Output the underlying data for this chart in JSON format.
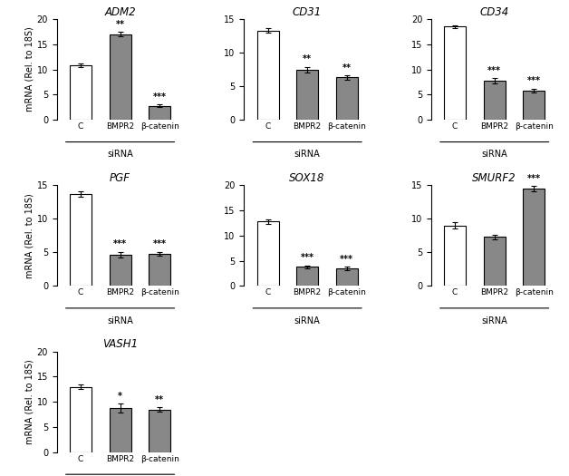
{
  "panels": [
    {
      "title": "ADM2",
      "ylim": [
        0,
        20
      ],
      "yticks": [
        0,
        5,
        10,
        15,
        20
      ],
      "bars": [
        {
          "label": "C",
          "value": 10.8,
          "err": 0.3,
          "color": "white"
        },
        {
          "label": "BMPR2",
          "value": 17.0,
          "err": 0.4,
          "color": "gray",
          "sig": "**"
        },
        {
          "label": "β-catenin",
          "value": 2.8,
          "err": 0.2,
          "color": "gray",
          "sig": "***"
        }
      ]
    },
    {
      "title": "CD31",
      "ylim": [
        0,
        15
      ],
      "yticks": [
        0,
        5,
        10,
        15
      ],
      "bars": [
        {
          "label": "C",
          "value": 13.3,
          "err": 0.3,
          "color": "white"
        },
        {
          "label": "BMPR2",
          "value": 7.5,
          "err": 0.4,
          "color": "gray",
          "sig": "**"
        },
        {
          "label": "β-catenin",
          "value": 6.3,
          "err": 0.3,
          "color": "gray",
          "sig": "**"
        }
      ]
    },
    {
      "title": "CD34",
      "ylim": [
        0,
        20
      ],
      "yticks": [
        0,
        5,
        10,
        15,
        20
      ],
      "bars": [
        {
          "label": "C",
          "value": 18.5,
          "err": 0.3,
          "color": "white"
        },
        {
          "label": "BMPR2",
          "value": 7.8,
          "err": 0.5,
          "color": "gray",
          "sig": "***"
        },
        {
          "label": "β-catenin",
          "value": 5.8,
          "err": 0.4,
          "color": "gray",
          "sig": "***"
        }
      ]
    },
    {
      "title": "PGF",
      "ylim": [
        0,
        15
      ],
      "yticks": [
        0,
        5,
        10,
        15
      ],
      "bars": [
        {
          "label": "C",
          "value": 13.7,
          "err": 0.4,
          "color": "white"
        },
        {
          "label": "BMPR2",
          "value": 4.7,
          "err": 0.4,
          "color": "gray",
          "sig": "***"
        },
        {
          "label": "β-catenin",
          "value": 4.8,
          "err": 0.3,
          "color": "gray",
          "sig": "***"
        }
      ]
    },
    {
      "title": "SOX18",
      "ylim": [
        0,
        20
      ],
      "yticks": [
        0,
        5,
        10,
        15,
        20
      ],
      "bars": [
        {
          "label": "C",
          "value": 12.8,
          "err": 0.4,
          "color": "white"
        },
        {
          "label": "BMPR2",
          "value": 3.8,
          "err": 0.3,
          "color": "gray",
          "sig": "***"
        },
        {
          "label": "β-catenin",
          "value": 3.5,
          "err": 0.3,
          "color": "gray",
          "sig": "***"
        }
      ]
    },
    {
      "title": "SMURF2",
      "ylim": [
        0,
        15
      ],
      "yticks": [
        0,
        5,
        10,
        15
      ],
      "bars": [
        {
          "label": "C",
          "value": 9.0,
          "err": 0.5,
          "color": "white"
        },
        {
          "label": "BMPR2",
          "value": 7.3,
          "err": 0.3,
          "color": "gray"
        },
        {
          "label": "β-catenin",
          "value": 14.5,
          "err": 0.4,
          "color": "gray",
          "sig": "***"
        }
      ]
    },
    {
      "title": "VASH1",
      "ylim": [
        0,
        20
      ],
      "yticks": [
        0,
        5,
        10,
        15,
        20
      ],
      "bars": [
        {
          "label": "C",
          "value": 13.0,
          "err": 0.5,
          "color": "white"
        },
        {
          "label": "BMPR2",
          "value": 8.8,
          "err": 0.9,
          "color": "gray",
          "sig": "*"
        },
        {
          "label": "β-catenin",
          "value": 8.5,
          "err": 0.4,
          "color": "gray",
          "sig": "**"
        }
      ]
    }
  ],
  "bar_width": 0.55,
  "bar_color_white": "#ffffff",
  "bar_color_gray": "#888888",
  "bar_edgecolor": "#000000",
  "ylabel": "mRNA (Rel. to 18S)",
  "xlabel_group": "siRNA",
  "fig_bg": "#ffffff"
}
